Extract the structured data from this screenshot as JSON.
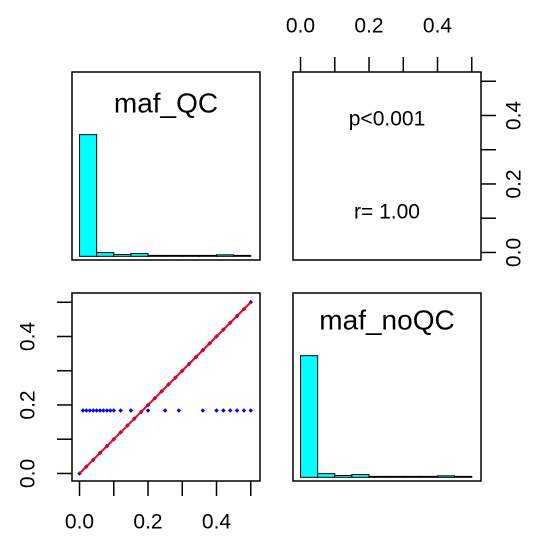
{
  "chart_data": {
    "type": "pairs",
    "variables": [
      "maf_QC",
      "maf_noQC"
    ],
    "xlim": [
      -0.022,
      0.527
    ],
    "ylim": [
      -0.022,
      0.527
    ],
    "xticks": [
      {
        "value": 0,
        "label": "0.0"
      },
      0.2,
      0.4
    ],
    "yticks": [
      {
        "value": 0,
        "label": "0.0"
      },
      0.2,
      0.4
    ],
    "minor_ticks": [
      0.1,
      0.3,
      0.5
    ],
    "histograms": {
      "color": "#00ffff",
      "ylim": [
        -0.02,
        1
      ],
      "bins": [
        0,
        0.05,
        0.1,
        0.15,
        0.2,
        0.25,
        0.3,
        0.35,
        0.4,
        0.45,
        0.5
      ],
      "series": [
        {
          "values": [
            0.66,
            0.02,
            0.01,
            0.015,
            0.005,
            0.005,
            0.005,
            0.005,
            0.008,
            0.005
          ]
        },
        {
          "values": [
            0.66,
            0.02,
            0.01,
            0.015,
            0.005,
            0.005,
            0.005,
            0.005,
            0.008,
            0.005
          ]
        }
      ]
    },
    "correlation": {
      "p": "p<0.001",
      "r": "r= 1.00"
    },
    "scatter": {
      "color": "#0000ff",
      "x": [
        0,
        0.02,
        0.04,
        0.06,
        0.08,
        0.1,
        0.12,
        0.14,
        0.16,
        0.18,
        0.2,
        0.22,
        0.24,
        0.26,
        0.28,
        0.3,
        0.32,
        0.34,
        0.36,
        0.38,
        0.4,
        0.42,
        0.44,
        0.46,
        0.48,
        0.5,
        0.01,
        0.02,
        0.03,
        0.04,
        0.05,
        0.06,
        0.07,
        0.08,
        0.09,
        0.1,
        0.12,
        0.15,
        0.2,
        0.25,
        0.29,
        0.36,
        0.4,
        0.42,
        0.44,
        0.46,
        0.48,
        0.5
      ],
      "y": [
        0,
        0.02,
        0.04,
        0.06,
        0.08,
        0.1,
        0.12,
        0.14,
        0.16,
        0.18,
        0.2,
        0.22,
        0.24,
        0.26,
        0.28,
        0.3,
        0.32,
        0.34,
        0.36,
        0.38,
        0.4,
        0.42,
        0.44,
        0.46,
        0.48,
        0.5,
        0.184,
        0.184,
        0.184,
        0.184,
        0.184,
        0.184,
        0.184,
        0.184,
        0.184,
        0.184,
        0.184,
        0.184,
        0.184,
        0.184,
        0.184,
        0.184,
        0.184,
        0.184,
        0.184,
        0.184,
        0.184,
        0.184
      ],
      "fit": {
        "color": "#ff0000",
        "x": [
          0,
          0.5
        ],
        "y": [
          0,
          0.5
        ]
      }
    }
  }
}
